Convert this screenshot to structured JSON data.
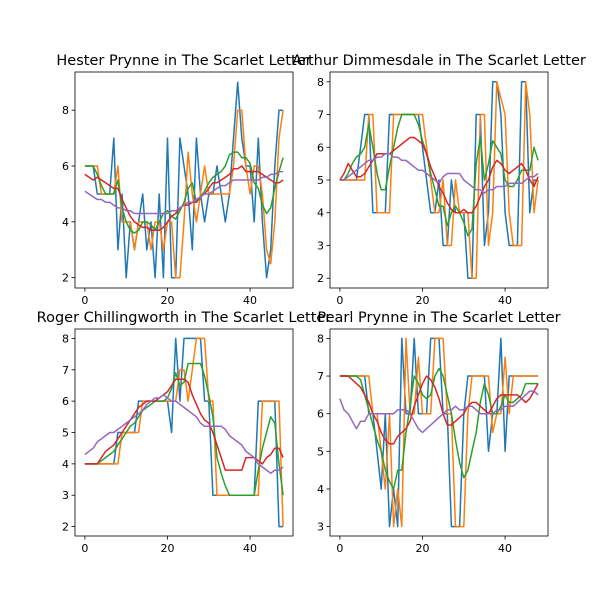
{
  "chart_data": [
    {
      "type": "line",
      "title": "Hester Prynne in The Scarlet Letter",
      "xlabel": "",
      "ylabel": "",
      "xlim": [
        -2.4,
        50.4
      ],
      "ylim": [
        1.63,
        9.37
      ],
      "xticks": [
        0,
        20,
        40
      ],
      "yticks": [
        2,
        4,
        6,
        8
      ],
      "xtick_labels": [
        "0",
        "20",
        "40"
      ],
      "ytick_labels": [
        "2",
        "4",
        "6",
        "8"
      ],
      "grid": false,
      "series": [
        {
          "color": "#1f77b4",
          "values": [
            6,
            6,
            6,
            5,
            5,
            5,
            5,
            7,
            3,
            5,
            2,
            4,
            3,
            4,
            5,
            3,
            4,
            2,
            5,
            2,
            7,
            2,
            2,
            7,
            6,
            5,
            3,
            7,
            5,
            4,
            5,
            5,
            6,
            5,
            4,
            5,
            7,
            9,
            7,
            6,
            6,
            4,
            7,
            4,
            2,
            3,
            6,
            8,
            8
          ]
        },
        {
          "color": "#ff7f0e",
          "values": [
            6,
            6,
            6,
            6,
            5,
            5,
            5,
            5,
            6,
            4,
            4,
            4,
            3,
            4,
            4,
            4,
            3,
            4,
            4,
            3,
            4,
            4,
            2,
            2,
            4,
            6.5,
            5,
            4,
            5,
            6,
            5,
            5,
            5,
            5,
            5,
            5,
            6,
            8,
            8,
            6,
            5,
            6,
            6,
            5,
            3,
            2.5,
            4,
            7,
            8
          ]
        },
        {
          "color": "#2ca02c",
          "values": [
            6,
            6,
            6,
            5.7,
            5.3,
            5,
            5,
            5,
            5.5,
            4.5,
            4,
            3.7,
            3.6,
            3.7,
            4,
            4,
            3.9,
            3.7,
            4,
            4.3,
            4.4,
            4.2,
            4.1,
            4.4,
            4.7,
            5.2,
            5.4,
            4.7,
            4.9,
            5.1,
            5.4,
            5.6,
            5.7,
            5.8,
            6,
            6.4,
            6.5,
            6.5,
            6.3,
            6.3,
            6.1,
            5.4,
            5.2,
            4.6,
            4.3,
            4.5,
            5.2,
            5.8,
            6.3
          ]
        },
        {
          "color": "#d62728",
          "values": [
            5.7,
            5.6,
            5.5,
            5.6,
            5.5,
            5.4,
            5.3,
            5.2,
            5.2,
            4.8,
            4.5,
            4.2,
            4,
            3.9,
            3.8,
            3.8,
            3.7,
            3.7,
            3.7,
            3.8,
            4,
            4.2,
            4.3,
            4.5,
            4.6,
            4.6,
            4.7,
            4.7,
            4.9,
            5,
            5.2,
            5.4,
            5.4,
            5.5,
            5.6,
            5.7,
            5.9,
            5.9,
            6,
            5.8,
            5.8,
            5.8,
            5.8,
            5.7,
            5.6,
            5.5,
            5.4,
            5.4,
            5.5
          ]
        },
        {
          "color": "#9467bd",
          "values": [
            5.1,
            5,
            4.9,
            4.8,
            4.8,
            4.7,
            4.7,
            4.6,
            4.5,
            4.5,
            4.4,
            4.4,
            4.3,
            4.3,
            4.3,
            4.3,
            4.3,
            4.3,
            4.3,
            4.3,
            4.3,
            4.4,
            4.4,
            4.5,
            4.6,
            4.7,
            4.7,
            4.8,
            4.9,
            5,
            5,
            5.1,
            5.2,
            5.3,
            5.3,
            5.4,
            5.5,
            5.5,
            5.5,
            5.5,
            5.5,
            5.5,
            5.5,
            5.6,
            5.6,
            5.7,
            5.7,
            5.8,
            5.8
          ]
        }
      ]
    },
    {
      "type": "line",
      "title": "Arthur Dimmesdale in The Scarlet Letter",
      "xlabel": "",
      "ylabel": "",
      "xlim": [
        -2.4,
        50.4
      ],
      "ylim": [
        1.7,
        8.3
      ],
      "xticks": [
        0,
        20,
        40
      ],
      "yticks": [
        2,
        3,
        4,
        5,
        6,
        7,
        8
      ],
      "xtick_labels": [
        "0",
        "20",
        "40"
      ],
      "ytick_labels": [
        "2",
        "3",
        "4",
        "5",
        "6",
        "7",
        "8"
      ],
      "grid": false,
      "series": [
        {
          "color": "#1f77b4",
          "values": [
            5,
            5,
            5,
            5,
            5,
            6,
            7,
            7,
            4,
            4,
            4,
            4,
            7,
            7,
            7,
            7,
            7,
            7,
            7,
            7,
            6,
            5,
            4,
            4,
            5,
            3,
            3,
            5,
            4,
            4,
            4,
            2,
            2,
            7,
            7,
            3,
            4,
            8,
            8,
            7,
            4,
            3,
            3,
            3,
            8,
            8,
            4,
            5,
            5
          ]
        },
        {
          "color": "#ff7f0e",
          "values": [
            5,
            5,
            5,
            5,
            5,
            5,
            5,
            7,
            7,
            4,
            4,
            4,
            4,
            7,
            7,
            7,
            7,
            7,
            7,
            7,
            7,
            6,
            5,
            4,
            4,
            5,
            3,
            3,
            5,
            4,
            4,
            4,
            2,
            2,
            7,
            7,
            3,
            4,
            8,
            7.5,
            7,
            4,
            3,
            3,
            3,
            8,
            7,
            4,
            5
          ]
        },
        {
          "color": "#2ca02c",
          "values": [
            5,
            5,
            5.2,
            5.5,
            5.7,
            5.8,
            6,
            6.7,
            6,
            5.2,
            4.7,
            4.7,
            5.4,
            6,
            6.6,
            7,
            7,
            7,
            7,
            6.7,
            6.2,
            5.8,
            5.2,
            4.7,
            4.2,
            4.2,
            3.6,
            4,
            4.2,
            4,
            3.7,
            3.3,
            3.5,
            5.5,
            6.3,
            5,
            5.5,
            6.2,
            6,
            5.8,
            5,
            4.8,
            4.8,
            5,
            5.3,
            5.3,
            5.3,
            6,
            5.6
          ]
        },
        {
          "color": "#d62728",
          "values": [
            5,
            5.2,
            5.5,
            5.3,
            5.1,
            5.1,
            5.2,
            5.4,
            5.6,
            5.8,
            5.8,
            5.8,
            5.8,
            5.9,
            6,
            6.1,
            6.2,
            6.3,
            6.3,
            6.2,
            6.1,
            5.8,
            5.4,
            5.1,
            4.8,
            4.6,
            4.3,
            4.1,
            4,
            4,
            4.1,
            4,
            4,
            4.2,
            4.5,
            4.8,
            5,
            5.4,
            5.6,
            5.5,
            5.3,
            5.2,
            5.3,
            5.4,
            5.5,
            5.3,
            5,
            4.8,
            5.1
          ]
        },
        {
          "color": "#9467bd",
          "values": [
            5,
            5,
            5.1,
            5.2,
            5.3,
            5.4,
            5.5,
            5.6,
            5.6,
            5.7,
            5.7,
            5.8,
            5.8,
            5.7,
            5.7,
            5.6,
            5.6,
            5.5,
            5.4,
            5.3,
            5.3,
            5.2,
            5.1,
            5,
            4.9,
            5.1,
            5.2,
            5.2,
            5.2,
            5.2,
            5,
            4.9,
            4.8,
            4.7,
            4.7,
            4.6,
            4.7,
            4.7,
            4.8,
            4.8,
            4.8,
            4.9,
            4.9,
            4.9,
            4.9,
            5,
            5.1,
            5.1,
            5.2
          ]
        }
      ]
    },
    {
      "type": "line",
      "title": "Roger Chillingworth in The Scarlet Letter",
      "xlabel": "",
      "ylabel": "",
      "xlim": [
        -2.4,
        50.4
      ],
      "ylim": [
        1.7,
        8.3
      ],
      "xticks": [
        0,
        20,
        40
      ],
      "yticks": [
        2,
        3,
        4,
        5,
        6,
        7,
        8
      ],
      "xtick_labels": [
        "0",
        "20",
        "40"
      ],
      "ytick_labels": [
        "2",
        "3",
        "4",
        "5",
        "6",
        "7",
        "8"
      ],
      "grid": false,
      "series": [
        {
          "color": "#1f77b4",
          "values": [
            4,
            4,
            4,
            4,
            4,
            4,
            4,
            4,
            5,
            5,
            5,
            5,
            5,
            6,
            6,
            6,
            6,
            6,
            6,
            6,
            6,
            5,
            8,
            6,
            8,
            8,
            8,
            8,
            8,
            6,
            6,
            3,
            3,
            3,
            3,
            3,
            3,
            3,
            3,
            3,
            3,
            3,
            6,
            6,
            6,
            6,
            6,
            2,
            2
          ]
        },
        {
          "color": "#ff7f0e",
          "values": [
            4,
            4,
            4,
            4,
            4,
            4,
            4,
            4,
            4,
            5,
            5,
            5,
            5,
            5,
            6,
            6,
            6,
            6,
            6,
            6,
            6,
            6,
            6,
            7,
            7,
            6,
            7,
            8,
            8,
            8,
            6,
            6,
            3,
            3,
            3,
            3,
            3,
            3,
            3,
            3,
            3,
            3,
            3,
            6,
            6,
            6,
            6,
            6,
            2
          ]
        },
        {
          "color": "#2ca02c",
          "values": [
            4,
            4,
            4,
            4,
            4.1,
            4.2,
            4.3,
            4.4,
            4.6,
            4.8,
            5,
            5.2,
            5.3,
            5.5,
            5.7,
            5.8,
            5.9,
            6,
            6,
            6,
            6.1,
            6.4,
            6.9,
            6.5,
            6.6,
            7.2,
            7.2,
            7.2,
            7.2,
            6.8,
            6.2,
            5.5,
            4.2,
            3.7,
            3.3,
            3,
            3,
            3,
            3,
            3,
            3,
            3,
            3.8,
            4.5,
            5,
            5.5,
            5.3,
            4,
            3
          ]
        },
        {
          "color": "#d62728",
          "values": [
            4,
            4,
            4,
            4,
            4.2,
            4.4,
            4.5,
            4.6,
            4.8,
            5,
            5.2,
            5.4,
            5.6,
            5.8,
            5.9,
            6,
            6,
            6,
            6.1,
            6.2,
            6.3,
            6.5,
            6.7,
            6.7,
            6.7,
            6.6,
            6.2,
            5.9,
            5.6,
            5.4,
            5.3,
            5,
            4.6,
            4.2,
            3.8,
            3.8,
            3.8,
            3.8,
            3.8,
            4.2,
            4.2,
            4.2,
            4.1,
            4,
            4.2,
            4.3,
            4.5,
            4.5,
            4.2
          ]
        },
        {
          "color": "#9467bd",
          "values": [
            4.3,
            4.4,
            4.5,
            4.7,
            4.8,
            4.9,
            5,
            5,
            5.1,
            5.2,
            5.3,
            5.4,
            5.5,
            5.6,
            5.7,
            5.9,
            6,
            6.1,
            6.1,
            6.2,
            6.1,
            6,
            6,
            5.9,
            5.8,
            5.7,
            5.6,
            5.5,
            5.3,
            5.2,
            5.2,
            5.2,
            5.2,
            5.2,
            5.1,
            4.9,
            4.8,
            4.7,
            4.6,
            4.4,
            4.3,
            4.2,
            4,
            3.9,
            3.8,
            3.7,
            3.8,
            3.8,
            3.9
          ]
        }
      ]
    },
    {
      "type": "line",
      "title": "Pearl Prynne in The Scarlet Letter",
      "xlabel": "",
      "ylabel": "",
      "xlim": [
        -2.4,
        50.4
      ],
      "ylim": [
        2.75,
        8.25
      ],
      "xticks": [
        0,
        20,
        40
      ],
      "yticks": [
        3,
        4,
        5,
        6,
        7,
        8
      ],
      "xtick_labels": [
        "0",
        "20",
        "40"
      ],
      "ytick_labels": [
        "3",
        "4",
        "5",
        "6",
        "7",
        "8"
      ],
      "grid": false,
      "series": [
        {
          "color": "#1f77b4",
          "values": [
            7,
            7,
            7,
            7,
            7,
            7,
            7,
            6,
            6,
            5,
            4,
            6,
            3,
            4,
            3,
            8,
            6,
            6,
            8,
            6,
            6,
            6,
            8,
            8,
            8,
            6,
            6,
            3,
            3,
            3,
            6,
            7,
            7,
            7,
            7,
            7,
            5,
            6,
            6,
            8,
            5,
            7,
            7,
            7,
            7,
            7,
            7,
            7,
            7
          ]
        },
        {
          "color": "#ff7f0e",
          "values": [
            7,
            7,
            7,
            7,
            7,
            7,
            7,
            7,
            6,
            6,
            5,
            4,
            6,
            3,
            4,
            3,
            8,
            6,
            6,
            7.5,
            6,
            6,
            6,
            8,
            8,
            8,
            6,
            6,
            3,
            3,
            3,
            6,
            7,
            7,
            7,
            7,
            7,
            5.5,
            6,
            6,
            7.5,
            6,
            7,
            7,
            7,
            7,
            7,
            7,
            7
          ]
        },
        {
          "color": "#2ca02c",
          "values": [
            7,
            7,
            7,
            7,
            7,
            6.9,
            6.5,
            6.1,
            5.7,
            5.3,
            5,
            4.5,
            4.2,
            4,
            4.5,
            4.5,
            5.5,
            6.2,
            7,
            6.8,
            6.5,
            6.4,
            6.5,
            7,
            7.2,
            7,
            6.5,
            6,
            5.3,
            4.7,
            4.3,
            4.5,
            5,
            5.5,
            6.3,
            6.8,
            6.5,
            6,
            6,
            6.2,
            6.5,
            6.3,
            6.3,
            6.4,
            6.5,
            6.8,
            6.8,
            6.8,
            6.8
          ]
        },
        {
          "color": "#d62728",
          "values": [
            7,
            7,
            7,
            6.9,
            6.8,
            6.7,
            6.5,
            6.3,
            6,
            5.8,
            5.5,
            5.3,
            5.2,
            5.2,
            5.4,
            5.5,
            5.6,
            5.8,
            6.2,
            6.5,
            6.8,
            7,
            6.9,
            6.7,
            6.4,
            6,
            5.7,
            5.7,
            5.8,
            5.9,
            6,
            6.2,
            6.3,
            6.3,
            6.2,
            6.1,
            6,
            6.2,
            6.4,
            6.5,
            6.5,
            6.5,
            6.5,
            6.5,
            6.4,
            6.3,
            6.4,
            6.6,
            6.8
          ]
        },
        {
          "color": "#9467bd",
          "values": [
            6.4,
            6.1,
            6,
            5.8,
            5.6,
            5.8,
            5.8,
            6,
            6,
            6,
            6,
            6,
            6,
            6,
            6.1,
            6.1,
            6.1,
            6,
            5.8,
            5.6,
            5.5,
            5.6,
            5.7,
            5.8,
            5.9,
            6,
            6.1,
            6.1,
            6.2,
            6.1,
            6.1,
            6.2,
            6.2,
            6.1,
            6,
            6,
            6,
            6,
            6.1,
            6.1,
            6.2,
            6.2,
            6.2,
            6.3,
            6.4,
            6.5,
            6.6,
            6.6,
            6.5
          ]
        }
      ]
    }
  ]
}
